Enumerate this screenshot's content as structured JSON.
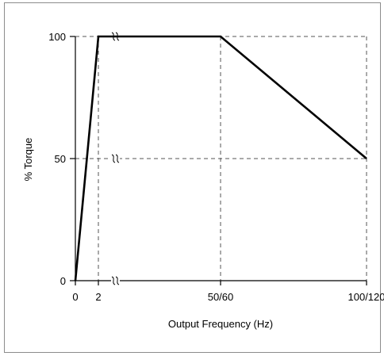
{
  "chart_data": {
    "type": "line",
    "title": "",
    "xlabel": "Output Frequency (Hz)",
    "ylabel": "% Torque",
    "x_tick_labels": [
      "0",
      "2",
      "50/60",
      "100/120"
    ],
    "y_tick_labels": [
      "0",
      "50",
      "100"
    ],
    "x_axis": {
      "note": "axis broken between 2 and 50/60",
      "ticks": [
        "0",
        "2",
        "50/60",
        "100/120"
      ]
    },
    "ylim": [
      0,
      100
    ],
    "series": [
      {
        "points": [
          {
            "x": "0",
            "y": 0
          },
          {
            "x": "2",
            "y": 100
          },
          {
            "x": "50/60",
            "y": 100
          },
          {
            "x": "100/120",
            "y": 50
          }
        ]
      }
    ],
    "grid": true,
    "colors": {
      "line": "#000000",
      "grid": "#555555",
      "frame": "#8c8c8c"
    }
  }
}
